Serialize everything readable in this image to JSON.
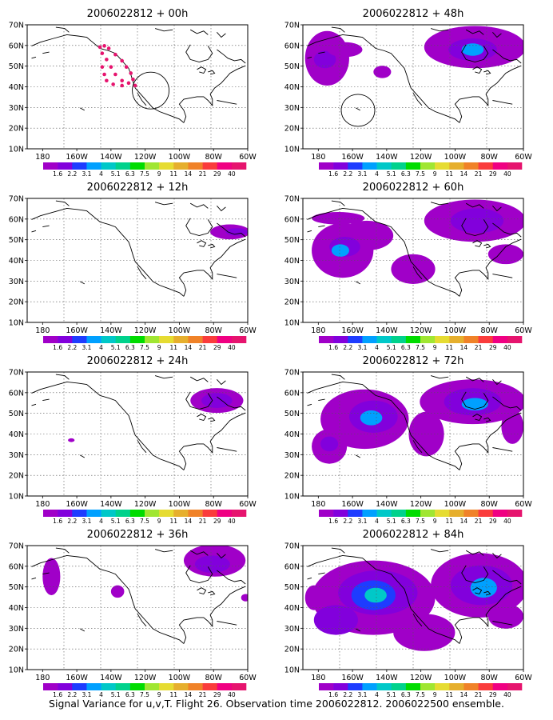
{
  "caption": "Signal Variance for u,v,T. Flight 26. Observation time 2006022812. 2006022500 ensemble.",
  "lat_labels": [
    "70N",
    "60N",
    "50N",
    "40N",
    "30N",
    "20N",
    "10N"
  ],
  "lon_labels": [
    "180",
    "160W",
    "140W",
    "120W",
    "100W",
    "80W",
    "60W"
  ],
  "colorbar": {
    "labels": [
      "1.6",
      "2.2",
      "3.1",
      "4",
      "5.1",
      "6.3",
      "7.5",
      "9",
      "11",
      "14",
      "21",
      "29",
      "40"
    ],
    "colors": [
      "#a000c8",
      "#8200dc",
      "#1e3cff",
      "#00a0ff",
      "#00c8c8",
      "#00d28c",
      "#00dc00",
      "#a0e632",
      "#e6dc32",
      "#e6af2d",
      "#f08228",
      "#fa3c3c",
      "#f00082",
      "#e6146e"
    ]
  },
  "coast_color": "#000000",
  "grid_color": "#555555",
  "panels": [
    {
      "title": "2006022812 + 00h",
      "hour": 0
    },
    {
      "title": "2006022812 + 12h",
      "hour": 12
    },
    {
      "title": "2006022812 + 24h",
      "hour": 24
    },
    {
      "title": "2006022812 + 36h",
      "hour": 36
    },
    {
      "title": "2006022812 + 48h",
      "hour": 48
    },
    {
      "title": "2006022812 + 60h",
      "hour": 60
    },
    {
      "title": "2006022812 + 72h",
      "hour": 72
    },
    {
      "title": "2006022812 + 84h",
      "hour": 84
    }
  ]
}
